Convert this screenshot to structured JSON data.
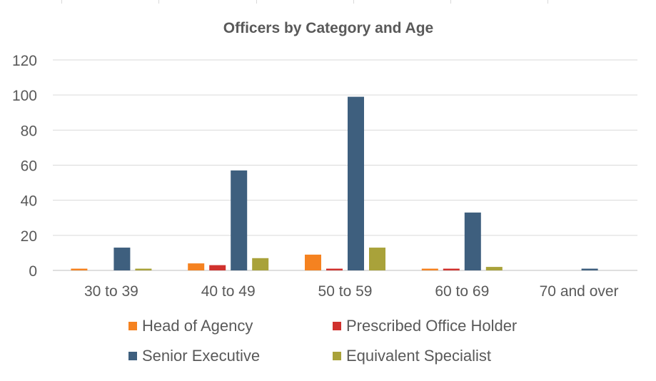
{
  "chart_data": {
    "type": "bar",
    "title": "Officers by Category and Age",
    "categories": [
      "30 to 39",
      "40 to 49",
      "50 to 59",
      "60 to 69",
      "70 and over"
    ],
    "yticks": [
      0,
      20,
      40,
      60,
      80,
      100,
      120
    ],
    "ylim": [
      0,
      120
    ],
    "grid": true,
    "legend_position": "bottom",
    "series": [
      {
        "name": "Head of Agency",
        "color": "#f58220",
        "values": [
          1,
          4,
          9,
          1,
          0
        ]
      },
      {
        "name": "Prescribed Office Holder",
        "color": "#d0312d",
        "values": [
          0,
          3,
          1,
          1,
          0
        ]
      },
      {
        "name": "Senior Executive",
        "color": "#3e5f7e",
        "values": [
          13,
          57,
          99,
          33,
          1
        ]
      },
      {
        "name": "Equivalent Specialist",
        "color": "#a9a23a",
        "values": [
          1,
          7,
          13,
          2,
          0
        ]
      }
    ]
  }
}
